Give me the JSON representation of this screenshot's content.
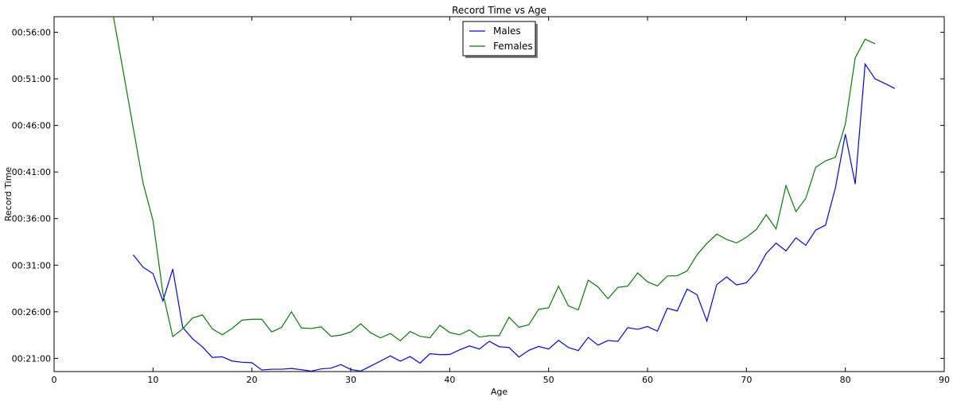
{
  "chart_data": {
    "type": "line",
    "title": "Record Time vs Age",
    "xlabel": "Age",
    "ylabel": "Record Time",
    "xlim": [
      0,
      90
    ],
    "ylim": [
      "00:19:35",
      "00:57:40"
    ],
    "x_ticks": [
      0,
      10,
      20,
      30,
      40,
      50,
      60,
      70,
      80,
      90
    ],
    "y_ticks": [
      "00:21:00",
      "00:26:00",
      "00:31:00",
      "00:36:00",
      "00:41:00",
      "00:46:00",
      "00:51:00",
      "00:56:00"
    ],
    "grid": false,
    "legend": {
      "position": "top-center",
      "shadow": true
    },
    "series": [
      {
        "name": "Males",
        "color": "#0000ff",
        "x": [
          8,
          9,
          10,
          11,
          12,
          13,
          14,
          15,
          16,
          17,
          18,
          19,
          20,
          21,
          22,
          23,
          24,
          25,
          26,
          27,
          28,
          29,
          30,
          31,
          32,
          33,
          34,
          35,
          36,
          37,
          38,
          39,
          40,
          41,
          42,
          43,
          44,
          45,
          46,
          47,
          48,
          49,
          50,
          51,
          52,
          53,
          54,
          55,
          56,
          57,
          58,
          59,
          60,
          61,
          62,
          63,
          64,
          65,
          66,
          67,
          68,
          69,
          70,
          71,
          72,
          73,
          74,
          75,
          76,
          77,
          78,
          79,
          80,
          81,
          82,
          83,
          84,
          85
        ],
        "y": [
          "00:32:07",
          "00:30:47",
          "00:30:06",
          "00:27:10",
          "00:30:35",
          "00:24:20",
          "00:23:06",
          "00:22:14",
          "00:21:06",
          "00:21:10",
          "00:20:43",
          "00:20:35",
          "00:20:32",
          "00:19:45",
          "00:19:50",
          "00:19:50",
          "00:19:55",
          "00:19:47",
          "00:19:38",
          "00:19:52",
          "00:19:57",
          "00:20:20",
          "00:19:48",
          "00:19:38",
          "00:20:10",
          "00:20:43",
          "00:21:16",
          "00:20:42",
          "00:21:12",
          "00:20:29",
          "00:21:30",
          "00:21:24",
          "00:21:25",
          "00:21:55",
          "00:22:20",
          "00:22:00",
          "00:22:50",
          "00:22:15",
          "00:22:10",
          "00:21:08",
          "00:21:52",
          "00:22:17",
          "00:22:00",
          "00:22:56",
          "00:22:10",
          "00:21:50",
          "00:23:15",
          "00:22:25",
          "00:22:55",
          "00:22:50",
          "00:24:18",
          "00:24:07",
          "00:24:25",
          "00:23:55",
          "00:26:23",
          "00:26:05",
          "00:28:26",
          "00:27:50",
          "00:25:00",
          "00:28:55",
          "00:29:44",
          "00:28:53",
          "00:29:07",
          "00:30:20",
          "00:32:16",
          "00:33:22",
          "00:32:32",
          "00:33:56",
          "00:33:08",
          "00:34:46",
          "00:35:18",
          "00:39:19",
          "00:45:04",
          "00:39:42",
          "00:52:35",
          "00:51:00",
          "00:50:30",
          "00:49:58"
        ]
      },
      {
        "name": "Females",
        "color": "#008000",
        "x": [
          6,
          7,
          8,
          9,
          10,
          11,
          12,
          13,
          14,
          15,
          16,
          17,
          18,
          19,
          20,
          21,
          22,
          23,
          24,
          25,
          26,
          27,
          28,
          29,
          30,
          31,
          32,
          33,
          34,
          35,
          36,
          37,
          38,
          39,
          40,
          41,
          42,
          43,
          44,
          45,
          46,
          47,
          48,
          49,
          50,
          51,
          52,
          53,
          54,
          55,
          56,
          57,
          58,
          59,
          60,
          61,
          62,
          63,
          64,
          65,
          66,
          67,
          68,
          69,
          70,
          71,
          72,
          73,
          74,
          75,
          76,
          77,
          78,
          79,
          80,
          81,
          82,
          83
        ],
        "y": [
          "00:57:40",
          "00:51:45",
          "00:45:44",
          "00:39:47",
          "00:35:48",
          "00:28:00",
          "00:23:20",
          "00:24:10",
          "00:25:20",
          "00:25:40",
          "00:24:10",
          "00:23:32",
          "00:24:13",
          "00:25:06",
          "00:25:12",
          "00:25:12",
          "00:23:50",
          "00:24:20",
          "00:26:00",
          "00:24:16",
          "00:24:12",
          "00:24:23",
          "00:23:22",
          "00:23:30",
          "00:23:50",
          "00:24:43",
          "00:23:45",
          "00:23:12",
          "00:23:40",
          "00:22:53",
          "00:23:53",
          "00:23:22",
          "00:23:13",
          "00:24:33",
          "00:23:46",
          "00:23:32",
          "00:24:03",
          "00:23:17",
          "00:23:26",
          "00:23:26",
          "00:25:25",
          "00:24:20",
          "00:24:37",
          "00:26:16",
          "00:26:25",
          "00:28:45",
          "00:26:38",
          "00:26:12",
          "00:29:24",
          "00:28:40",
          "00:27:24",
          "00:28:37",
          "00:28:45",
          "00:30:10",
          "00:29:13",
          "00:28:46",
          "00:29:50",
          "00:29:52",
          "00:30:23",
          "00:32:07",
          "00:33:20",
          "00:34:20",
          "00:33:46",
          "00:33:23",
          "00:34:00",
          "00:34:50",
          "00:36:25",
          "00:34:53",
          "00:39:33",
          "00:36:45",
          "00:38:10",
          "00:41:30",
          "00:42:12",
          "00:42:35",
          "00:46:08",
          "00:53:16",
          "00:55:15",
          "00:54:46"
        ]
      }
    ]
  }
}
